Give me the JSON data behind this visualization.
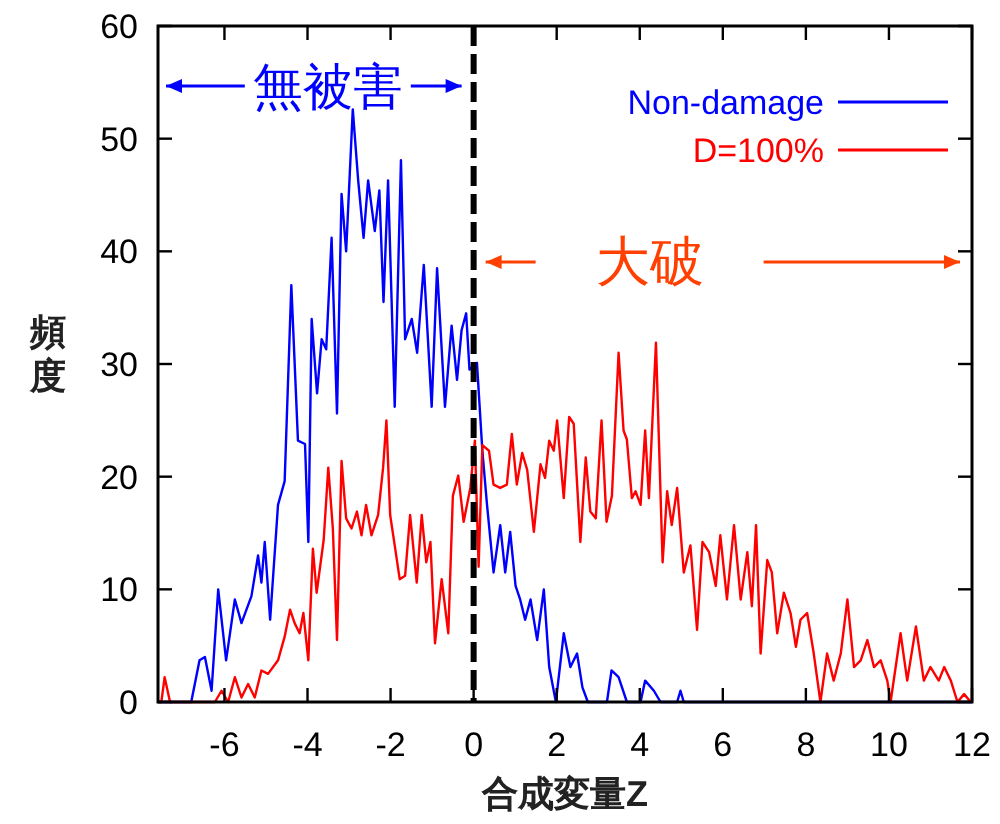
{
  "chart_data": {
    "type": "line",
    "xlabel": "合成変量Z",
    "ylabel": "頻度",
    "xlim": [
      -7.6,
      12
    ],
    "xticks": [
      -6,
      -4,
      -2,
      0,
      2,
      4,
      6,
      8,
      10,
      12
    ],
    "ylim": [
      0,
      60
    ],
    "yticks": [
      0,
      10,
      20,
      30,
      40,
      50,
      60
    ],
    "grid": false,
    "legend": "top right",
    "ref_lines": [
      {
        "axis": "x",
        "value": 0,
        "color": "#000000",
        "line_style": "dashed"
      }
    ],
    "annotations": [
      "無被害",
      "大破"
    ],
    "series": [
      {
        "name": "Non-damage",
        "color": "#0000ff",
        "x": [
          -7.6,
          -6.8,
          -6.6,
          -6.47,
          -6.31,
          -6.15,
          -5.96,
          -5.75,
          -5.59,
          -5.35,
          -5.19,
          -5.11,
          -5.03,
          -4.9,
          -4.71,
          -4.55,
          -4.39,
          -4.23,
          -4.06,
          -3.98,
          -3.9,
          -3.77,
          -3.66,
          -3.55,
          -3.42,
          -3.29,
          -3.18,
          -3.07,
          -2.91,
          -2.78,
          -2.65,
          -2.54,
          -2.38,
          -2.27,
          -2.17,
          -2.06,
          -1.9,
          -1.75,
          -1.65,
          -1.49,
          -1.36,
          -1.2,
          -1.01,
          -0.88,
          -0.69,
          -0.53,
          -0.4,
          -0.29,
          -0.18,
          -0.1,
          0.08,
          0.21,
          0.32,
          0.48,
          0.64,
          0.76,
          0.88,
          1.01,
          1.12,
          1.24,
          1.37,
          1.53,
          1.69,
          1.82,
          1.98,
          2.17,
          2.33,
          2.49,
          2.62,
          2.75,
          3.21,
          3.32,
          3.49,
          3.69,
          4.02,
          4.13,
          4.34,
          4.5,
          4.9,
          4.98,
          5.06,
          12
        ],
        "values": [
          0,
          0,
          3.7,
          4,
          1,
          10,
          3.7,
          9.1,
          7,
          9.4,
          13,
          10.6,
          14.2,
          7.3,
          17.5,
          19.6,
          37,
          23.2,
          22.9,
          14.2,
          34,
          27.4,
          32.2,
          31.3,
          41.2,
          25.6,
          45.1,
          40,
          52.6,
          46.3,
          41.2,
          46.3,
          41.8,
          45.4,
          35.5,
          46.3,
          26.2,
          48.1,
          32.2,
          34,
          31,
          38.8,
          26.2,
          38.5,
          26.2,
          33.4,
          28.6,
          33,
          34.5,
          29.5,
          30.1,
          22.3,
          17.6,
          11.5,
          15.7,
          11.5,
          15.1,
          10.3,
          9.1,
          7.3,
          9.1,
          5.5,
          10,
          3.1,
          0,
          6.1,
          3.1,
          4.3,
          1.3,
          0,
          0,
          2.8,
          2.2,
          0,
          0,
          1.9,
          1,
          0,
          0,
          1,
          0,
          0
        ]
      },
      {
        "name": "D=100%",
        "color": "#ff0000",
        "x": [
          -7.6,
          -7.52,
          -7.44,
          -7.31,
          -6.23,
          -6.07,
          -5.91,
          -5.75,
          -5.59,
          -5.43,
          -5.27,
          -5.11,
          -4.95,
          -4.71,
          -4.55,
          -4.42,
          -4.31,
          -4.19,
          -4.1,
          -3.98,
          -3.87,
          -3.78,
          -3.61,
          -3.5,
          -3.39,
          -3.29,
          -3.18,
          -3.07,
          -2.94,
          -2.81,
          -2.7,
          -2.59,
          -2.46,
          -2.3,
          -2.18,
          -2.1,
          -2.01,
          -1.9,
          -1.78,
          -1.65,
          -1.53,
          -1.37,
          -1.25,
          -1.14,
          -1.04,
          -0.93,
          -0.77,
          -0.61,
          -0.5,
          -0.37,
          -0.24,
          -0.08,
          0.03,
          0.12,
          0.21,
          0.37,
          0.48,
          0.64,
          0.8,
          0.92,
          1.04,
          1.17,
          1.29,
          1.45,
          1.61,
          1.72,
          1.82,
          1.93,
          2.01,
          2.17,
          2.3,
          2.41,
          2.57,
          2.7,
          2.81,
          2.94,
          3.08,
          3.2,
          3.33,
          3.49,
          3.61,
          3.69,
          3.81,
          3.9,
          4.02,
          4.13,
          4.22,
          4.39,
          4.55,
          4.66,
          4.77,
          4.9,
          5.06,
          5.22,
          5.38,
          5.51,
          5.67,
          5.83,
          5.94,
          6.1,
          6.27,
          6.43,
          6.59,
          6.7,
          6.8,
          6.91,
          7.07,
          7.18,
          7.31,
          7.47,
          7.63,
          7.76,
          7.87,
          8.03,
          8.19,
          8.35,
          8.51,
          8.67,
          8.84,
          9,
          9.16,
          9.32,
          9.48,
          9.64,
          9.8,
          9.96,
          10.04,
          10.28,
          10.44,
          10.65,
          10.84,
          11,
          11.2,
          11.33,
          11.49,
          11.65,
          11.81,
          11.97
        ],
        "values": [
          0,
          0,
          2.2,
          0,
          0,
          1,
          0,
          2.2,
          0.4,
          1.6,
          0.4,
          2.8,
          2.5,
          3.7,
          5.8,
          8.2,
          7,
          6.1,
          7.9,
          3.7,
          13.6,
          9.7,
          14.4,
          20.8,
          15.4,
          5.5,
          21.4,
          16.3,
          15.4,
          16.9,
          14.8,
          17.5,
          14.8,
          16.6,
          20.8,
          25,
          16.6,
          13.9,
          10.9,
          11.2,
          16.6,
          10.6,
          16.6,
          12.4,
          14.2,
          5.2,
          10.9,
          6.1,
          18.3,
          20.1,
          16,
          19,
          23.2,
          12,
          22.8,
          22.3,
          19.3,
          19,
          19.3,
          23.8,
          19.3,
          22.1,
          20.6,
          15.1,
          21.1,
          19.9,
          23.2,
          22.3,
          25,
          18.1,
          25.3,
          24.7,
          14.2,
          21.7,
          16.9,
          16.3,
          25,
          16,
          18.3,
          31,
          24.1,
          23.3,
          18.1,
          18.7,
          17.5,
          24.1,
          18.1,
          31.9,
          12.4,
          18.7,
          15.7,
          19,
          11.5,
          13.9,
          6.4,
          14.2,
          13.3,
          10.3,
          14.8,
          9.1,
          15.7,
          9.1,
          13.3,
          8.5,
          15.7,
          4.3,
          12.6,
          11.5,
          6.1,
          9.7,
          7.9,
          4.9,
          7.3,
          7.9,
          4.3,
          0,
          4.3,
          1.9,
          4.3,
          9.1,
          3.1,
          3.7,
          5.5,
          3.1,
          3.7,
          1.9,
          0,
          6.1,
          1.9,
          6.7,
          1.9,
          3.1,
          1.9,
          3.1,
          1.9,
          0,
          0.7,
          0
        ]
      }
    ]
  }
}
